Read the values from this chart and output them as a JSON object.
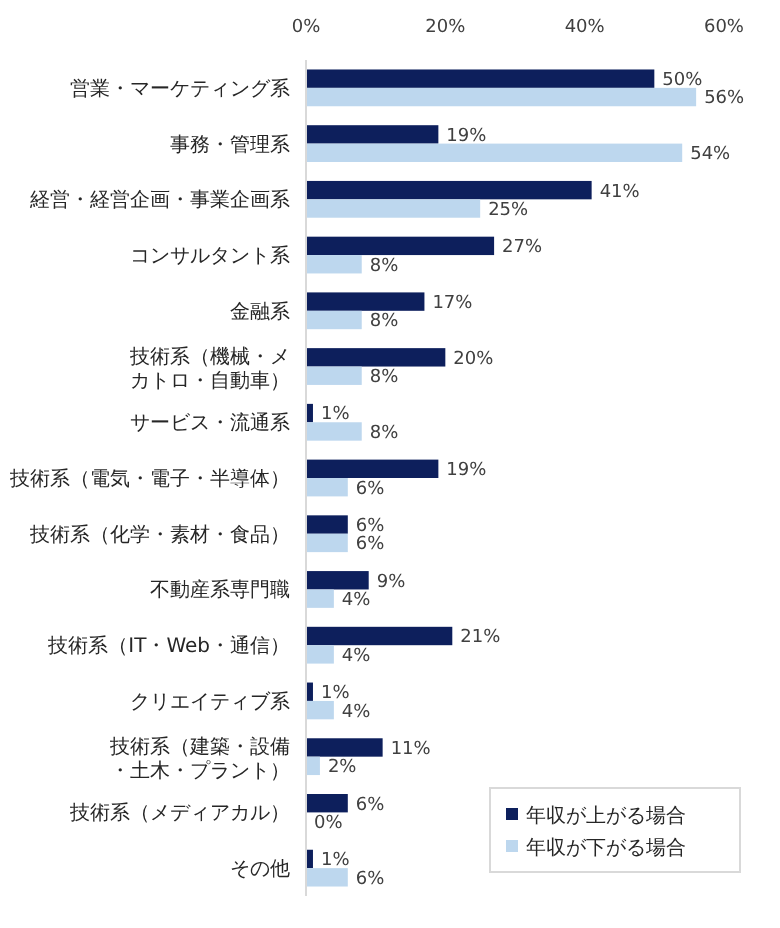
{
  "chart_data": {
    "type": "bar",
    "orientation": "horizontal",
    "categories": [
      "営業・マーケティング系",
      "事務・管理系",
      "経営・経営企画・事業企画系",
      "コンサルタント系",
      "金融系",
      "技術系（機械・メカトロ・自動車）",
      "サービス・流通系",
      "技術系（電気・電子・半導体）",
      "技術系（化学・素材・食品）",
      "不動産系専門職",
      "技術系（IT・Web・通信）",
      "クリエイティブ系",
      "技術系（建築・設備・土木・プラント）",
      "技術系（メディアカル）",
      "その他"
    ],
    "series": [
      {
        "name": "年収が上がる場合",
        "color": "#0d1f5c",
        "values": [
          50,
          19,
          41,
          27,
          17,
          20,
          1,
          19,
          6,
          9,
          21,
          1,
          11,
          6,
          1
        ],
        "value_labels": [
          "50%",
          "19%",
          "41%",
          "27%",
          "17%",
          "20%",
          "1%",
          "19%",
          "6%",
          "9%",
          "21%",
          "1%",
          "11%",
          "6%",
          "1%"
        ]
      },
      {
        "name": "年収が下がる場合",
        "color": "#bdd7ee",
        "values": [
          56,
          54,
          25,
          8,
          8,
          8,
          8,
          6,
          6,
          4,
          4,
          4,
          2,
          0,
          6
        ],
        "value_labels": [
          "56%",
          "54%",
          "25%",
          "8%",
          "8%",
          "8%",
          "8%",
          "6%",
          "6%",
          "4%",
          "4%",
          "4%",
          "2%",
          "0%",
          "6%"
        ]
      }
    ],
    "xlim": [
      0,
      60
    ],
    "xticks": [
      {
        "value": 0,
        "label": "0%"
      },
      {
        "value": 20,
        "label": "20%"
      },
      {
        "value": 40,
        "label": "40%"
      },
      {
        "value": 60,
        "label": "60%"
      }
    ],
    "grid": false,
    "legend": "bottom right"
  }
}
